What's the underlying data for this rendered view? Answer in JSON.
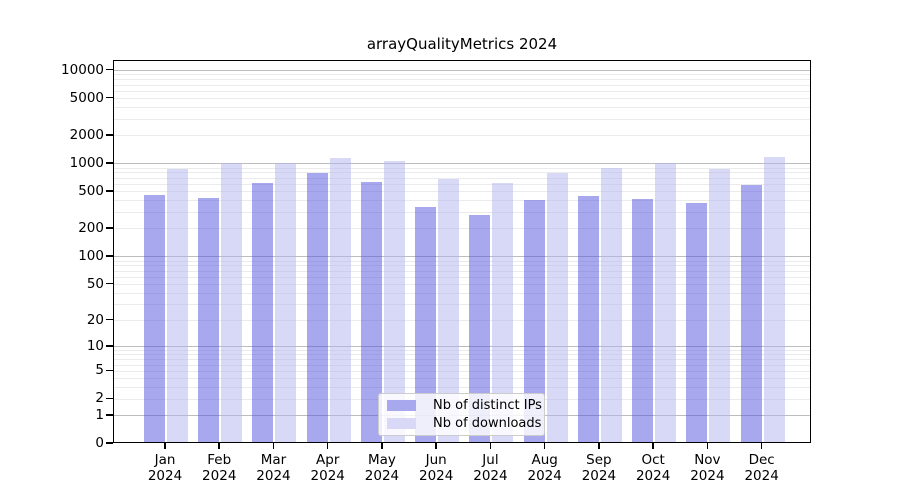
{
  "title": "arrayQualityMetrics 2024",
  "colors": {
    "ip_bar": "rgba(82,82,224,0.5)",
    "dl_bar": "rgba(178,178,240,0.5)",
    "ip_swatch": "#a8a8ef",
    "dl_swatch": "#d9d9f7",
    "grid_major": "#bdbdbd",
    "grid_minor": "#ebebeb",
    "axis": "#000000"
  },
  "legend": {
    "items": [
      {
        "label": "Nb of distinct IPs",
        "swatch": "ip_swatch"
      },
      {
        "label": "Nb of downloads",
        "swatch": "dl_swatch"
      }
    ]
  },
  "y_axis": {
    "tick_labels": [
      "10000",
      "5000",
      "2000",
      "1000",
      "500",
      "200",
      "100",
      "50",
      "20",
      "10",
      "5",
      "2",
      "1",
      "0"
    ],
    "tick_values": [
      10000,
      5000,
      2000,
      1000,
      500,
      200,
      100,
      50,
      20,
      10,
      5,
      2,
      1,
      0
    ]
  },
  "x_axis": {
    "months": [
      "Jan",
      "Feb",
      "Mar",
      "Apr",
      "May",
      "Jun",
      "Jul",
      "Aug",
      "Sep",
      "Oct",
      "Nov",
      "Dec"
    ],
    "year": "2024"
  },
  "chart_data": {
    "type": "bar",
    "title": "arrayQualityMetrics 2024",
    "categories": [
      "Jan 2024",
      "Feb 2024",
      "Mar 2024",
      "Apr 2024",
      "May 2024",
      "Jun 2024",
      "Jul 2024",
      "Aug 2024",
      "Sep 2024",
      "Oct 2024",
      "Nov 2024",
      "Dec 2024"
    ],
    "series": [
      {
        "name": "Nb of distinct IPs",
        "values": [
          440,
          410,
          600,
          760,
          610,
          330,
          270,
          390,
          430,
          400,
          360,
          560
        ]
      },
      {
        "name": "Nb of downloads",
        "values": [
          830,
          975,
          975,
          1100,
          1015,
          660,
          600,
          755,
          860,
          975,
          835,
          1140
        ]
      }
    ],
    "xlabel": "",
    "ylabel": "",
    "y_scale": "log1p",
    "ylim": [
      0,
      12700
    ],
    "y_ticks": [
      10000,
      5000,
      2000,
      1000,
      500,
      200,
      100,
      50,
      20,
      10,
      5,
      2,
      1,
      0
    ],
    "grid": true,
    "legend_position": "inside-bottom-center"
  }
}
